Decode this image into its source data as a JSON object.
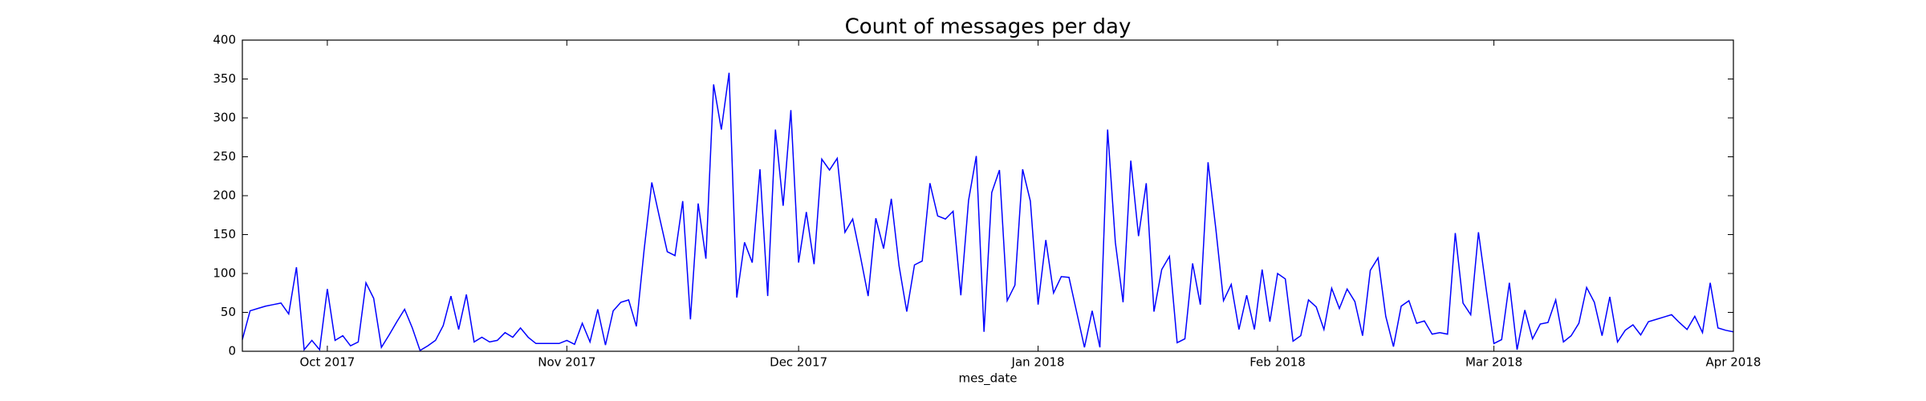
{
  "chart_data": {
    "type": "line",
    "title": "Count of messages per day",
    "xlabel": "mes_date",
    "xlim": [
      "2017-09-20",
      "2018-04-01"
    ],
    "xticks": [
      {
        "value": "2017-10-01",
        "label": "Oct 2017"
      },
      {
        "value": "2017-11-01",
        "label": "Nov 2017"
      },
      {
        "value": "2017-12-01",
        "label": "Dec 2017"
      },
      {
        "value": "2018-01-01",
        "label": "Jan 2018"
      },
      {
        "value": "2018-02-01",
        "label": "Feb 2018"
      },
      {
        "value": "2018-03-01",
        "label": "Mar 2018"
      },
      {
        "value": "2018-04-01",
        "label": "Apr 2018"
      }
    ],
    "ylim": [
      0,
      400
    ],
    "yticks": [
      0,
      50,
      100,
      150,
      200,
      250,
      300,
      350,
      400
    ],
    "grid": false,
    "series": [
      {
        "color": "#0000ff",
        "values": [
          15,
          52,
          55,
          58,
          60,
          62,
          48,
          108,
          2,
          14,
          2,
          80,
          14,
          20,
          7,
          12,
          88,
          68,
          5,
          21,
          38,
          54,
          30,
          1,
          7,
          14,
          33,
          71,
          28,
          73,
          12,
          18,
          12,
          14,
          24,
          18,
          30,
          18,
          10,
          10,
          10,
          10,
          14,
          9,
          36,
          12,
          54,
          8,
          52,
          63,
          66,
          32,
          130,
          217,
          172,
          128,
          123,
          193,
          41,
          190,
          119,
          343,
          285,
          358,
          69,
          140,
          114,
          234,
          71,
          285,
          187,
          310,
          114,
          179,
          112,
          247,
          233,
          248,
          153,
          170,
          122,
          71,
          171,
          132,
          196,
          110,
          51,
          111,
          116,
          216,
          174,
          170,
          180,
          72,
          194,
          251,
          25,
          204,
          233,
          65,
          85,
          234,
          193,
          60,
          143,
          75,
          96,
          95,
          50,
          5,
          52,
          5,
          285,
          140,
          63,
          245,
          148,
          216,
          51,
          105,
          122,
          11,
          16,
          113,
          60,
          243,
          158,
          65,
          86,
          28,
          72,
          28,
          105,
          38,
          100,
          93,
          13,
          20,
          66,
          57,
          28,
          81,
          55,
          80,
          64,
          20,
          104,
          120,
          45,
          6,
          58,
          65,
          36,
          39,
          22,
          24,
          22,
          152,
          62,
          47,
          153,
          80,
          10,
          15,
          88,
          2,
          53,
          16,
          35,
          37,
          66,
          12,
          20,
          36,
          82,
          63,
          20,
          70,
          12,
          27,
          34,
          21,
          38,
          41,
          44,
          47,
          37,
          28,
          45,
          24,
          88,
          30,
          27,
          25
        ]
      }
    ]
  }
}
